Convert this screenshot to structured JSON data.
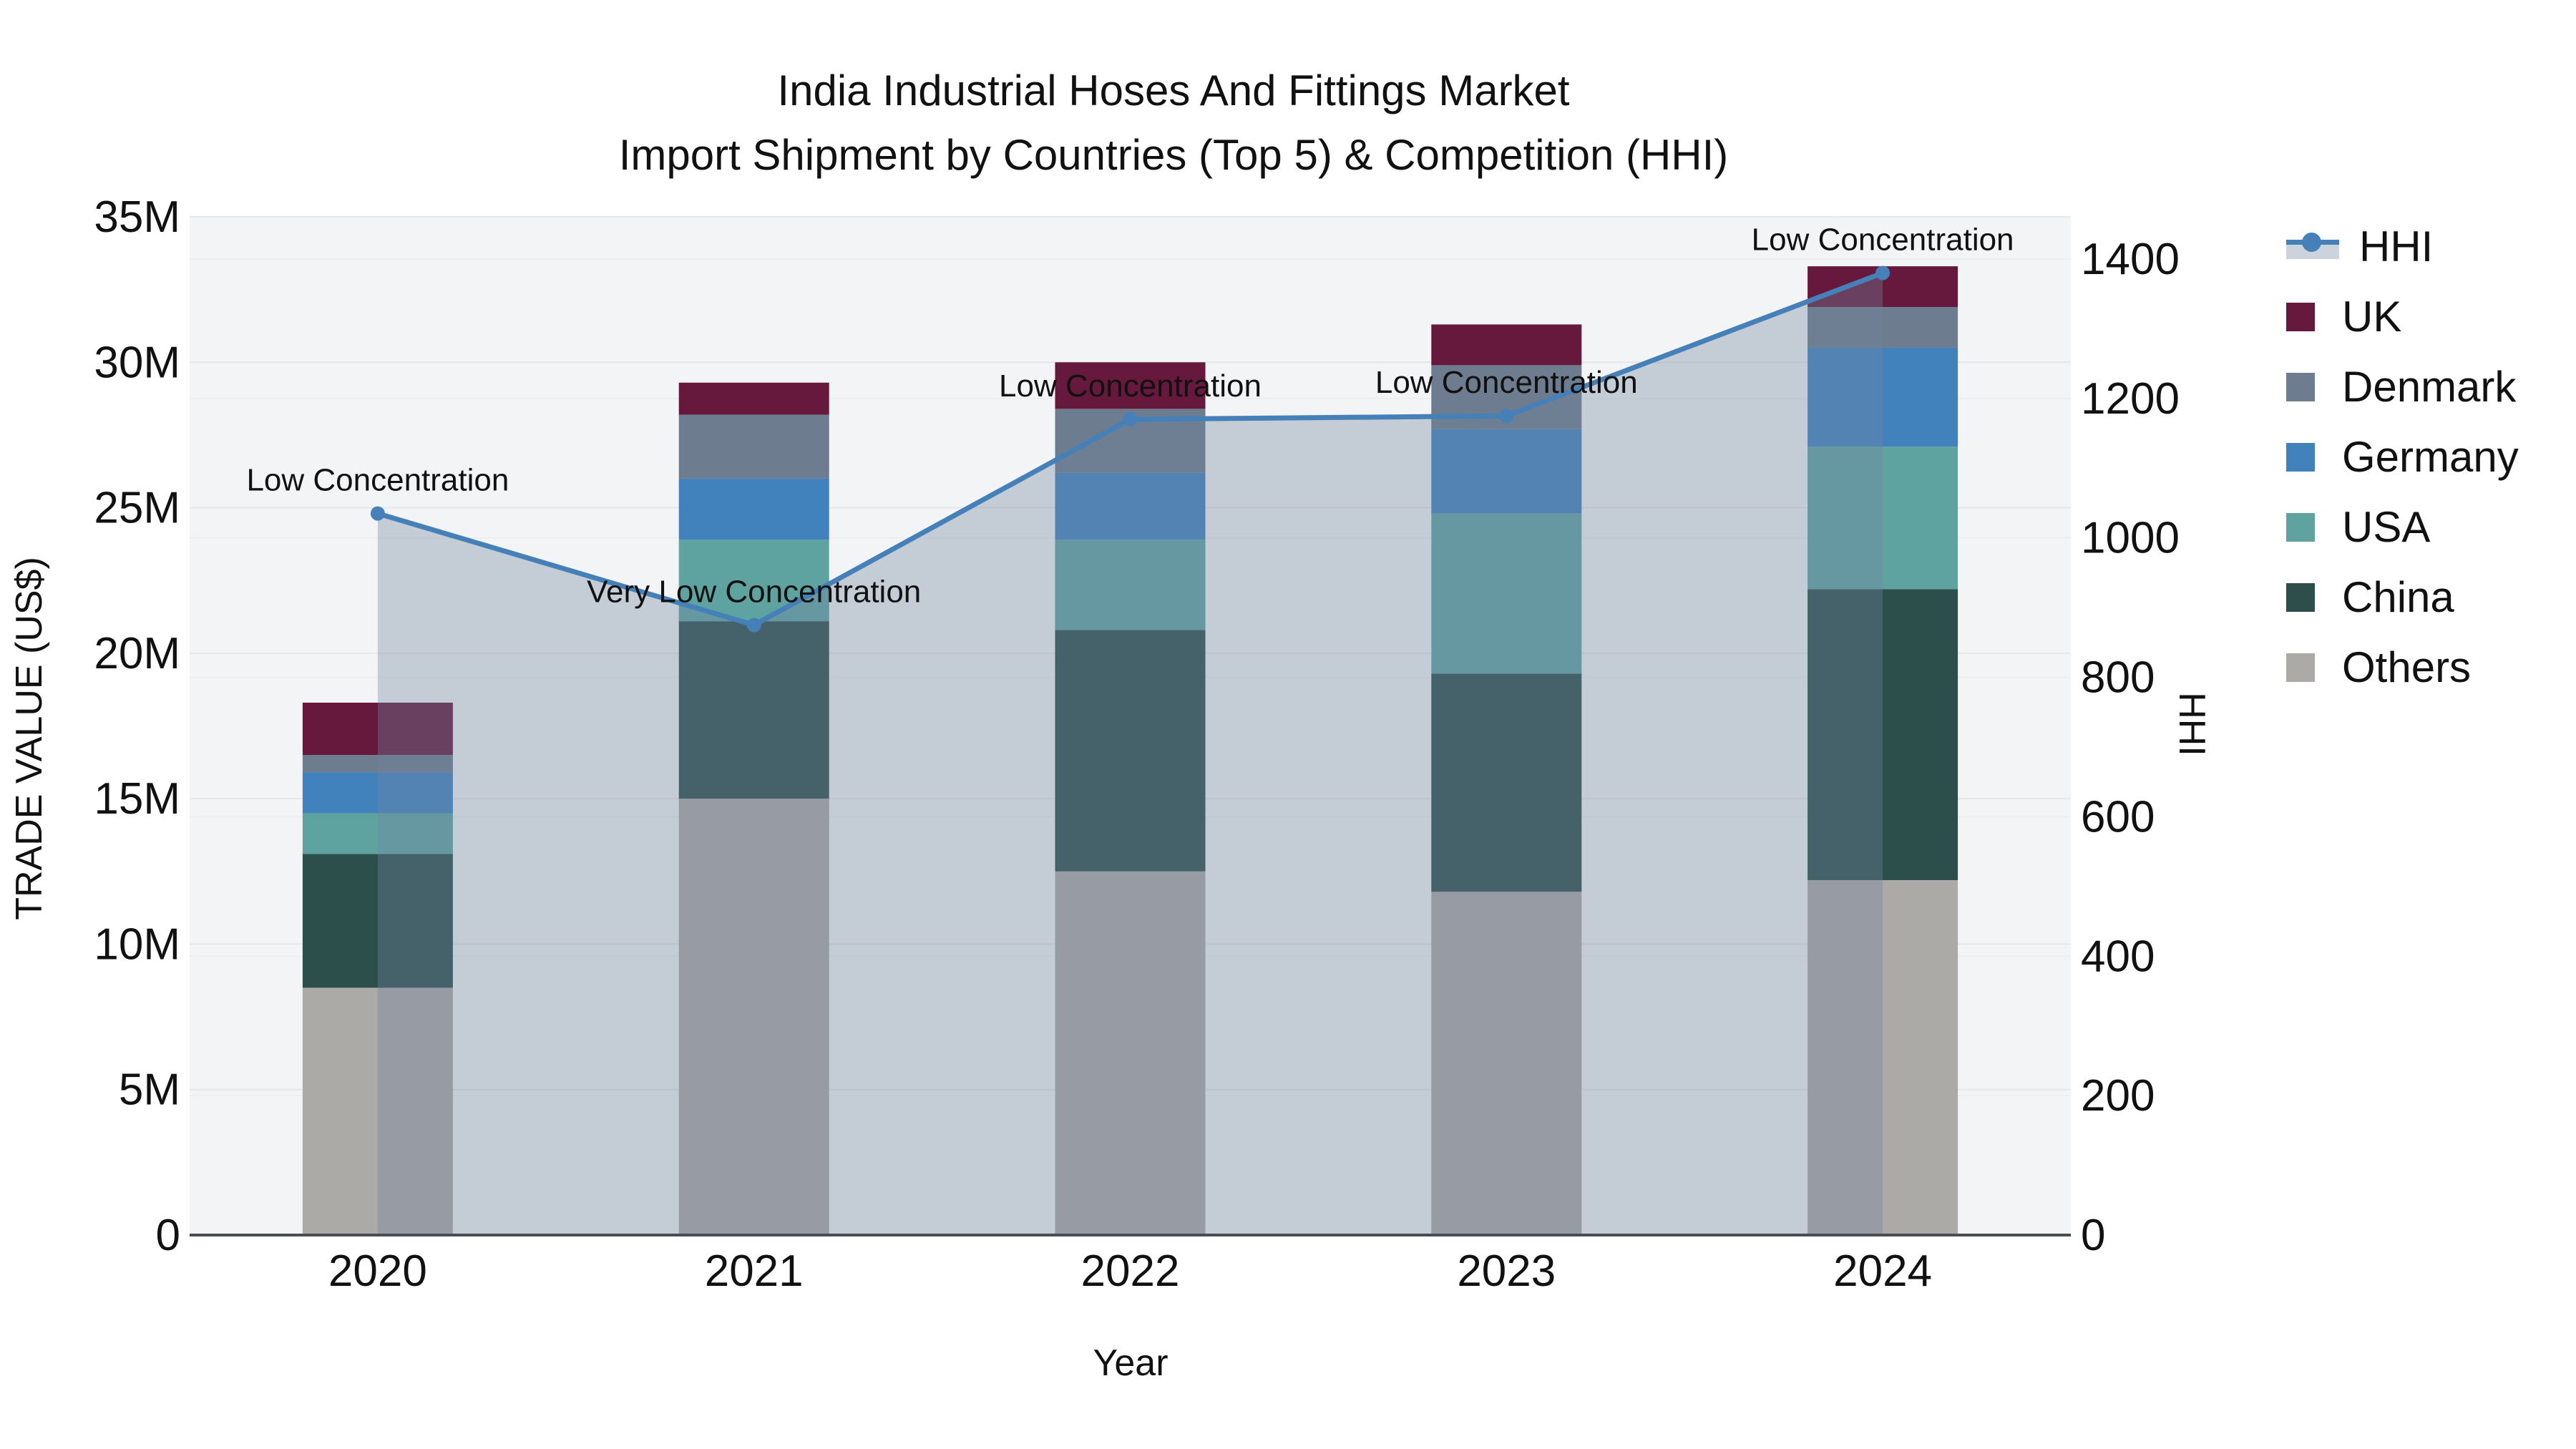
{
  "title": {
    "line1": "India Industrial Hoses And Fittings Market",
    "line2": "Import Shipment by Countries (Top 5) & Competition (HHI)"
  },
  "chart_data": {
    "type": "bar",
    "subtype": "stacked-bars-with-line-and-area-overlay",
    "categories": [
      "2020",
      "2021",
      "2022",
      "2023",
      "2024"
    ],
    "xlabel": "Year",
    "ylabel": "TRADE VALUE (US$)",
    "y2label": "HHI",
    "ylim_musd": [
      0,
      35
    ],
    "y2lim": [
      0,
      1400
    ],
    "grid": "on",
    "legend_position": "right",
    "units_note": "bar values in millions of US$ read from axis",
    "y_ticks": [
      {
        "value": 0,
        "label": "0"
      },
      {
        "value": 5,
        "label": "5M"
      },
      {
        "value": 10,
        "label": "10M"
      },
      {
        "value": 15,
        "label": "15M"
      },
      {
        "value": 20,
        "label": "20M"
      },
      {
        "value": 25,
        "label": "25M"
      },
      {
        "value": 30,
        "label": "30M"
      },
      {
        "value": 35,
        "label": "35M"
      }
    ],
    "y2_ticks": [
      {
        "value": 0,
        "label": "0"
      },
      {
        "value": 200,
        "label": "200"
      },
      {
        "value": 400,
        "label": "400"
      },
      {
        "value": 600,
        "label": "600"
      },
      {
        "value": 800,
        "label": "800"
      },
      {
        "value": 1000,
        "label": "1000"
      },
      {
        "value": 1200,
        "label": "1200"
      },
      {
        "value": 1400,
        "label": "1400"
      }
    ],
    "series": [
      {
        "name": "UK",
        "color": "#66193c",
        "values_musd": [
          1.8,
          1.1,
          1.6,
          1.4,
          1.4
        ]
      },
      {
        "name": "Denmark",
        "color": "#6d7c8e",
        "values_musd": [
          0.6,
          2.2,
          2.2,
          2.2,
          1.4
        ]
      },
      {
        "name": "Germany",
        "color": "#4282bc",
        "values_musd": [
          1.4,
          2.1,
          2.3,
          2.9,
          3.4
        ]
      },
      {
        "name": "USA",
        "color": "#5fa3a1",
        "values_musd": [
          1.4,
          2.8,
          3.1,
          5.5,
          4.9
        ]
      },
      {
        "name": "China",
        "color": "#2d4f4c",
        "values_musd": [
          4.6,
          6.1,
          8.3,
          7.5,
          10.0
        ]
      },
      {
        "name": "Others",
        "color": "#acaaa6",
        "values_musd": [
          8.5,
          15.0,
          12.5,
          11.8,
          12.2
        ]
      }
    ],
    "stack_order_bottom_to_top": [
      "Others",
      "China",
      "USA",
      "Germany",
      "Denmark",
      "UK"
    ],
    "hhi": {
      "name": "HHI",
      "line_color": "#4581b8",
      "area_color": "rgba(115,132,160,0.36)",
      "legend_band_color": "#cdd3dd",
      "values": [
        1035,
        875,
        1170,
        1175,
        1380
      ],
      "annotations": [
        "Low Concentration",
        "Very Low Concentration",
        "Low Concentration",
        "Low Concentration",
        "Low Concentration"
      ]
    },
    "legend_items": [
      {
        "name": "HHI",
        "type": "line"
      },
      {
        "name": "UK",
        "type": "swatch",
        "color": "#66193c"
      },
      {
        "name": "Denmark",
        "type": "swatch",
        "color": "#6d7c8e"
      },
      {
        "name": "Germany",
        "type": "swatch",
        "color": "#4282bc"
      },
      {
        "name": "USA",
        "type": "swatch",
        "color": "#5fa3a1"
      },
      {
        "name": "China",
        "type": "swatch",
        "color": "#2d4f4c"
      },
      {
        "name": "Others",
        "type": "swatch",
        "color": "#acaaa6"
      }
    ],
    "colors": {
      "plot_bg": "#f3f4f5",
      "grid_left": "#e6e7e9",
      "grid_right": "#eceef0",
      "x_axis_line": "#4a4d52",
      "text": "#111111"
    }
  }
}
